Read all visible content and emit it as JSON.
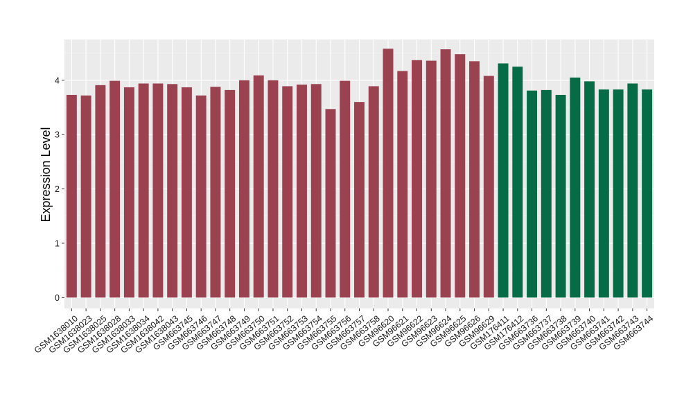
{
  "chart_data": {
    "type": "bar",
    "ylabel": "Expression Level",
    "xlabel": "",
    "ylim": [
      -0.2,
      4.75
    ],
    "yticks": [
      0,
      1,
      2,
      3,
      4
    ],
    "grid": true,
    "background": "#ebebeb",
    "categories": [
      "GSM1638010",
      "GSM1638023",
      "GSM1638025",
      "GSM1638028",
      "GSM1638033",
      "GSM1638034",
      "GSM1638042",
      "GSM1638043",
      "GSM663745",
      "GSM663746",
      "GSM663747",
      "GSM663748",
      "GSM663749",
      "GSM663750",
      "GSM663751",
      "GSM663752",
      "GSM663753",
      "GSM663754",
      "GSM663755",
      "GSM663756",
      "GSM663757",
      "GSM663758",
      "GSM96620",
      "GSM96621",
      "GSM96622",
      "GSM96623",
      "GSM96624",
      "GSM96625",
      "GSM96626",
      "GSM96629",
      "GSM176411",
      "GSM176412",
      "GSM663736",
      "GSM663737",
      "GSM663738",
      "GSM663739",
      "GSM663740",
      "GSM663741",
      "GSM663742",
      "GSM663743",
      "GSM663744"
    ],
    "values": [
      3.73,
      3.72,
      3.91,
      3.99,
      3.87,
      3.94,
      3.94,
      3.93,
      3.87,
      3.72,
      3.88,
      3.82,
      4.0,
      4.09,
      4.0,
      3.89,
      3.92,
      3.93,
      3.47,
      3.99,
      3.6,
      3.89,
      4.58,
      4.17,
      4.37,
      4.36,
      4.57,
      4.48,
      4.35,
      4.08,
      4.31,
      4.25,
      3.81,
      3.82,
      3.73,
      4.05,
      3.98,
      3.83,
      3.83,
      3.94,
      3.83
    ],
    "groups": [
      0,
      0,
      0,
      0,
      0,
      0,
      0,
      0,
      0,
      0,
      0,
      0,
      0,
      0,
      0,
      0,
      0,
      0,
      0,
      0,
      0,
      0,
      0,
      0,
      0,
      0,
      0,
      0,
      0,
      0,
      1,
      1,
      1,
      1,
      1,
      1,
      1,
      1,
      1,
      1,
      1
    ],
    "colors": [
      "#9b4251",
      "#066b47"
    ]
  }
}
